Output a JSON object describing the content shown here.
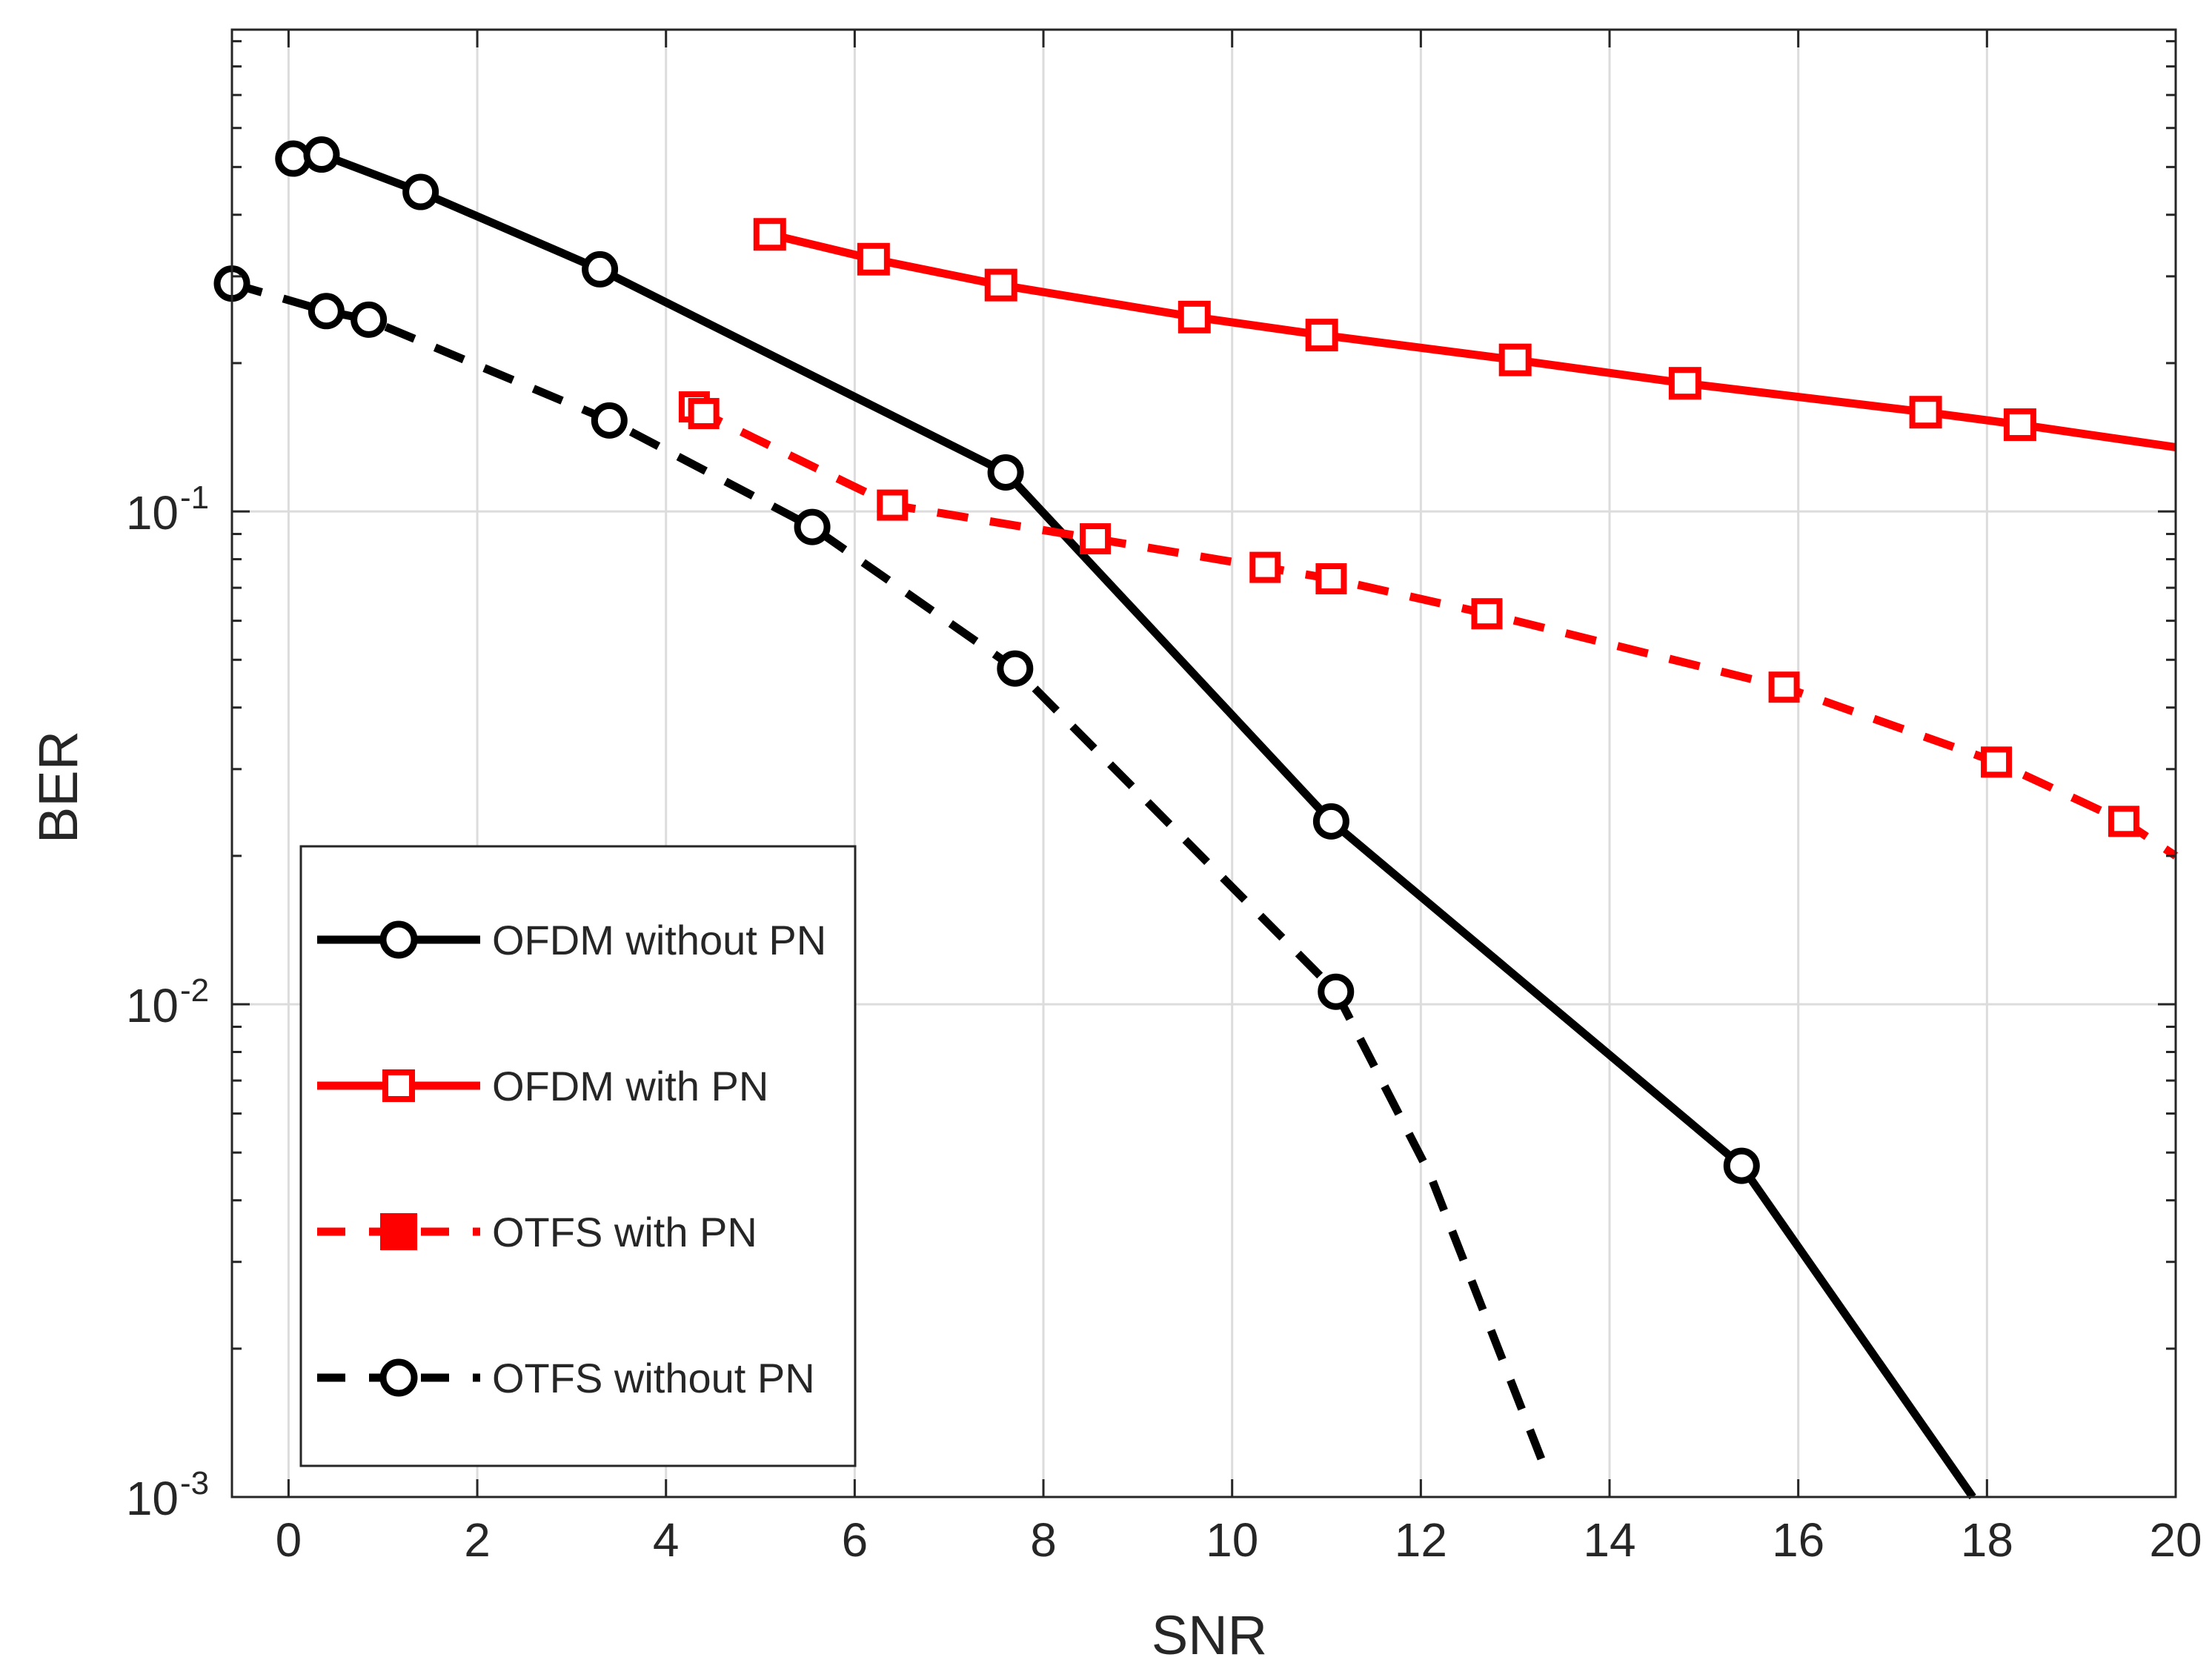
{
  "chart_data": {
    "type": "line",
    "title": "",
    "xlabel": "SNR",
    "ylabel": "BER",
    "xlim": [
      -0.6,
      20
    ],
    "ylim": [
      0.001,
      0.95
    ],
    "yscale": "log",
    "grid": true,
    "x_ticks": [
      0,
      2,
      4,
      6,
      8,
      10,
      12,
      14,
      16,
      18,
      20
    ],
    "y_ticks": [
      {
        "value": 0.1,
        "base": "10",
        "exp": "-1"
      },
      {
        "value": 0.01,
        "base": "10",
        "exp": "-2"
      },
      {
        "value": 0.001,
        "base": "10",
        "exp": "-3"
      }
    ],
    "legend_position": "bottom-left",
    "series": [
      {
        "name": "OFDM without PN",
        "color": "#000000",
        "style": "solid",
        "marker": "circle",
        "x": [
          0.05,
          0.35,
          1.4,
          3.3,
          7.6,
          11.05,
          15.4,
          17.85
        ],
        "y": [
          0.52,
          0.53,
          0.445,
          0.31,
          0.12,
          0.0235,
          0.0047,
          0.001
        ],
        "marker_x": [
          0.05,
          0.35,
          1.4,
          3.3,
          7.6,
          11.05,
          15.4
        ],
        "marker_y": [
          0.52,
          0.53,
          0.445,
          0.31,
          0.12,
          0.0235,
          0.0047
        ]
      },
      {
        "name": "OFDM with PN",
        "color": "#ff0000",
        "style": "solid",
        "marker": "square",
        "x": [
          5.1,
          6.2,
          7.55,
          9.6,
          10.95,
          13.0,
          14.8,
          17.35,
          18.35,
          20.0
        ],
        "y": [
          0.365,
          0.325,
          0.288,
          0.248,
          0.228,
          0.203,
          0.182,
          0.159,
          0.15,
          0.135
        ],
        "marker_x": [
          5.1,
          6.2,
          7.55,
          9.6,
          10.95,
          13.0,
          14.8,
          17.35,
          18.35
        ],
        "marker_y": [
          0.365,
          0.325,
          0.288,
          0.248,
          0.228,
          0.203,
          0.182,
          0.159,
          0.15
        ]
      },
      {
        "name": "OTFS with PN",
        "color": "#ff0000",
        "style": "dashed",
        "marker": "square",
        "x": [
          4.3,
          4.4,
          6.4,
          8.55,
          10.35,
          11.05,
          12.7,
          15.85,
          18.1,
          19.45,
          20.0
        ],
        "y": [
          0.163,
          0.158,
          0.103,
          0.088,
          0.077,
          0.073,
          0.062,
          0.044,
          0.031,
          0.0235,
          0.02
        ],
        "marker_x": [
          4.3,
          4.4,
          6.4,
          8.55,
          10.35,
          11.05,
          12.7,
          15.85,
          18.1,
          19.45
        ],
        "marker_y": [
          0.163,
          0.158,
          0.103,
          0.088,
          0.077,
          0.073,
          0.062,
          0.044,
          0.031,
          0.0235
        ]
      },
      {
        "name": "OTFS without PN",
        "color": "#000000",
        "style": "dashed",
        "marker": "circle",
        "x": [
          -0.6,
          0.4,
          0.85,
          3.4,
          5.55,
          7.7,
          11.1,
          12.1,
          13.35
        ],
        "y": [
          0.29,
          0.255,
          0.245,
          0.153,
          0.093,
          0.048,
          0.0106,
          0.0045,
          0.0011
        ],
        "marker_x": [
          -0.6,
          0.4,
          0.85,
          3.4,
          5.55,
          7.7,
          11.1
        ],
        "marker_y": [
          0.29,
          0.255,
          0.245,
          0.153,
          0.093,
          0.048,
          0.0106
        ]
      }
    ]
  }
}
